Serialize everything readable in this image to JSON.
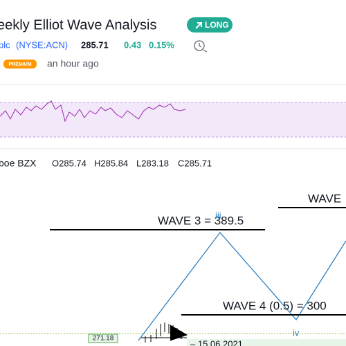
{
  "header": {
    "title": "eekly Elliot Wave Analysis",
    "badge": "LONG"
  },
  "symbol": {
    "name": "plc",
    "ticker": "(NYSE:ACN)",
    "price": "285.71",
    "change": "0.43",
    "change_pct": "0.15%"
  },
  "meta": {
    "badge": "PREMIUM",
    "time": "an hour ago"
  },
  "legend": {
    "source": "boe BZX",
    "open": "O285.74",
    "high": "H285.84",
    "low": "L283.18",
    "close": "C285.71"
  },
  "annotations": {
    "wave3": "WAVE 3 = 389.5",
    "wave3_label": "iii",
    "wave5": "WAVE",
    "wave4": "WAVE 4 (0.5) = 300",
    "wave4_label": "iv",
    "price_tag": "271.18",
    "date_box": "– 15.06.2021"
  }
}
